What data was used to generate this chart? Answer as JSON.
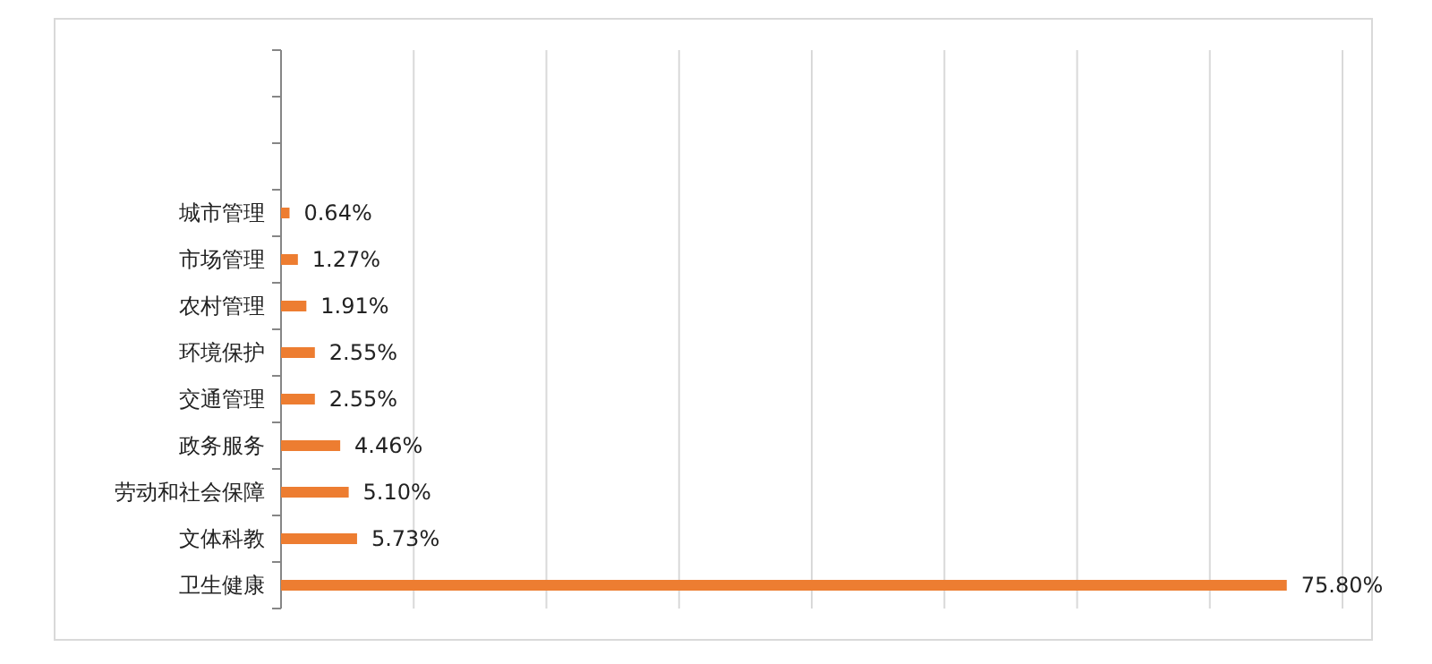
{
  "chart_data": {
    "type": "bar",
    "orientation": "horizontal",
    "categories": [
      null,
      null,
      null,
      "城市管理",
      "市场管理",
      "农村管理",
      "环境保护",
      "交通管理",
      "政务服务",
      "劳动和社会保障",
      "文体科教",
      "卫生健康"
    ],
    "values": [
      null,
      null,
      null,
      0.64,
      1.27,
      1.91,
      2.55,
      2.55,
      4.46,
      5.1,
      5.73,
      75.8
    ],
    "value_labels": [
      null,
      null,
      null,
      "0.64%",
      "1.27%",
      "1.91%",
      "2.55%",
      "2.55%",
      "4.46%",
      "5.10%",
      "5.73%",
      "75.80%"
    ],
    "color": "#ed7d31",
    "xlim": [
      0,
      80
    ],
    "xticks": [
      {
        "value": 0,
        "label": null
      },
      {
        "value": 10,
        "label": null
      },
      {
        "value": 20,
        "label": null
      },
      {
        "value": 30,
        "label": null
      },
      {
        "value": 40,
        "label": null
      },
      {
        "value": 50,
        "label": null
      },
      {
        "value": 60,
        "label": null
      },
      {
        "value": 70,
        "label": null
      },
      {
        "value": 80,
        "label": null
      }
    ],
    "grid": "x",
    "tick_labels": "y"
  }
}
